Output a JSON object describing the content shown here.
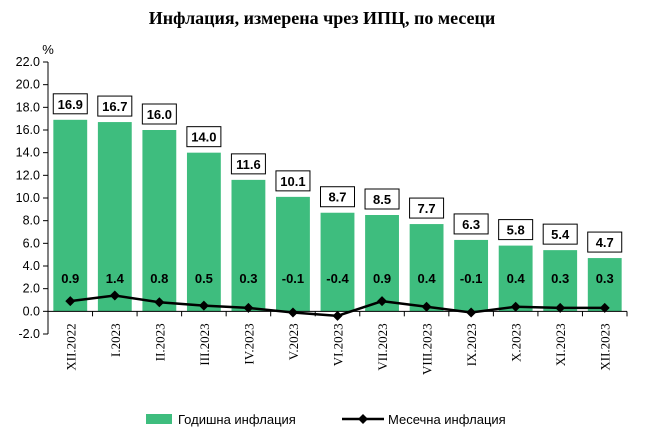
{
  "chart_data": {
    "type": "bar",
    "title": "Инфлация, измерена чрез ИПЦ, по месеци",
    "ylabel": "%",
    "ylim": [
      -2.0,
      22.0
    ],
    "yticks": [
      "22.0",
      "20.0",
      "18.0",
      "16.0",
      "14.0",
      "12.0",
      "10.0",
      "8.0",
      "6.0",
      "4.0",
      "2.0",
      "0.0",
      "-2.0"
    ],
    "categories": [
      "XII.2022",
      "I.2023",
      "II.2023",
      "III.2023",
      "IV.2023",
      "V.2023",
      "VI.2023",
      "VII.2023",
      "VIII.2023",
      "IX.2023",
      "X.2023",
      "XI.2023",
      "XII.2023"
    ],
    "series": [
      {
        "name": "Годишна инфлация",
        "type": "bar",
        "color": "#3ebd7e",
        "values": [
          16.9,
          16.7,
          16.0,
          14.0,
          11.6,
          10.1,
          8.7,
          8.5,
          7.7,
          6.3,
          5.8,
          5.4,
          4.7
        ],
        "labels": [
          "16.9",
          "16.7",
          "16.0",
          "14.0",
          "11.6",
          "10.1",
          "8.7",
          "8.5",
          "7.7",
          "6.3",
          "5.8",
          "5.4",
          "4.7"
        ]
      },
      {
        "name": "Месечна инфлация",
        "type": "line",
        "color": "#000000",
        "values": [
          0.9,
          1.4,
          0.8,
          0.5,
          0.3,
          -0.1,
          -0.4,
          0.9,
          0.4,
          -0.1,
          0.4,
          0.3,
          0.3
        ],
        "labels": [
          "0.9",
          "1.4",
          "0.8",
          "0.5",
          "0.3",
          "-0.1",
          "-0.4",
          "0.9",
          "0.4",
          "-0.1",
          "0.4",
          "0.3",
          "0.3"
        ]
      }
    ],
    "legend_position": "bottom"
  }
}
